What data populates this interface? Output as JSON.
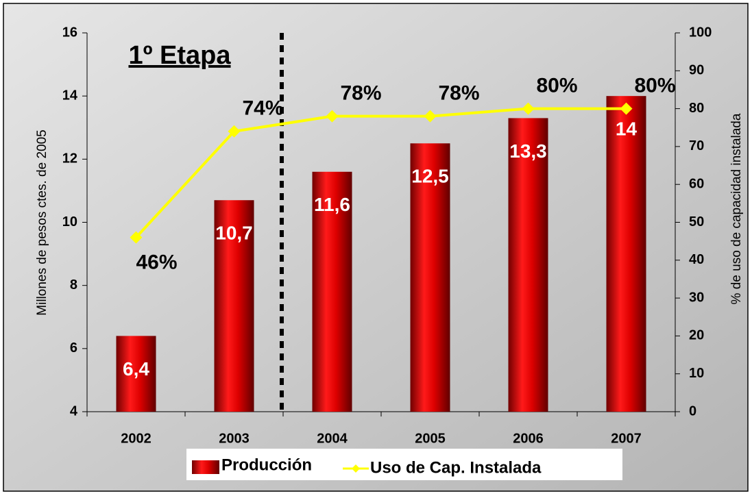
{
  "chart_data": {
    "type": "bar",
    "annotation": "1º Etapa",
    "y_label": "Millones de pesos ctes. de 2005",
    "y2_label": "% de uso de capacidad instalada",
    "categories": [
      "2002",
      "2003",
      "2004",
      "2005",
      "2006",
      "2007"
    ],
    "series": [
      {
        "name": "Producción",
        "type": "bar",
        "color": "#dd0000",
        "values": [
          6.4,
          10.7,
          11.6,
          12.5,
          13.3,
          14
        ],
        "value_labels": [
          "6,4",
          "10,7",
          "11,6",
          "12,5",
          "13,3",
          "14"
        ]
      },
      {
        "name": "Uso de Cap. Instalada",
        "type": "line",
        "axis": "y2",
        "color": "#ffff00",
        "values": [
          46,
          74,
          78,
          78,
          80,
          80
        ],
        "value_labels": [
          "46%",
          "74%",
          "78%",
          "78%",
          "80%",
          "80%"
        ]
      }
    ],
    "ylim": [
      4,
      16
    ],
    "yticks": [
      4,
      6,
      8,
      10,
      12,
      14,
      16
    ],
    "y2lim": [
      0,
      100
    ],
    "y2ticks": [
      0,
      10,
      20,
      30,
      40,
      50,
      60,
      70,
      80,
      90,
      100
    ]
  }
}
